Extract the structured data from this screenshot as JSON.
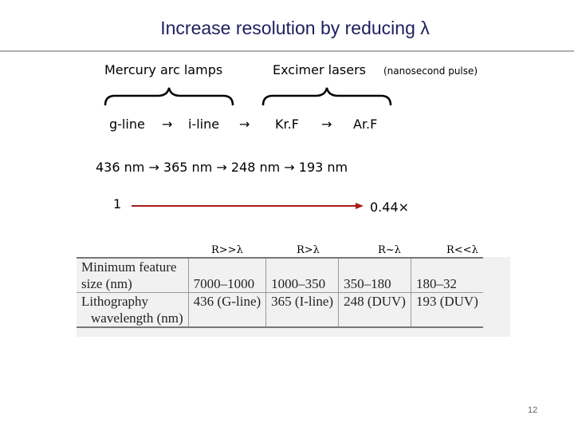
{
  "slide": {
    "title": "Increase resolution by reducing λ",
    "page_number": "12"
  },
  "sources": {
    "mercury_label": "Mercury arc lamps",
    "excimer_label": "Excimer lasers",
    "excimer_note": "(nanosecond pulse)"
  },
  "lines": {
    "g_line": "g-line",
    "i_line": "i-line",
    "krf": "Kr.F",
    "arf": "Ar.F",
    "arrow_symbol": "→"
  },
  "wavelengths": {
    "text": "436 nm → 365 nm → 248 nm → 193 nm"
  },
  "scale": {
    "start": "1",
    "end": "0.44×",
    "arrow_color": "#aa1a1a"
  },
  "regimes": [
    "R>>λ",
    "R>λ",
    "R~λ",
    "R<<λ"
  ],
  "table": {
    "row_labels": [
      [
        "Minimum feature",
        "size (nm)"
      ],
      [
        "Lithography",
        "wavelength (nm)"
      ]
    ],
    "feature_sizes": [
      "7000–1000",
      "1000–350",
      "350–180",
      "180–32"
    ],
    "wavelengths": [
      "436 (G-line)",
      "365 (I-line)",
      "248 (DUV)",
      "193 (DUV)"
    ]
  }
}
